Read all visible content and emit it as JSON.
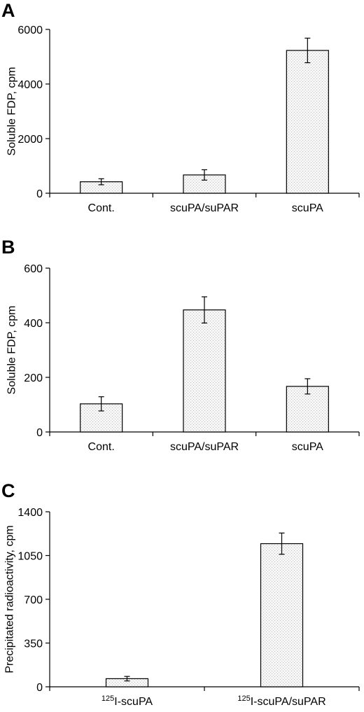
{
  "chart_data": [
    {
      "panel": "A",
      "type": "bar",
      "categories": [
        "Cont.",
        "scuPA/suPAR",
        "scuPA"
      ],
      "values": [
        420,
        670,
        5230
      ],
      "errors": [
        110,
        190,
        450
      ],
      "ylabel": "Soluble FDP, cpm",
      "ylim": [
        0,
        6000
      ],
      "yticks": [
        0,
        2000,
        4000,
        6000
      ],
      "grid": false,
      "legend": "none"
    },
    {
      "panel": "B",
      "type": "bar",
      "categories": [
        "Cont.",
        "scuPA/suPAR",
        "scuPA"
      ],
      "values": [
        103,
        447,
        167
      ],
      "errors": [
        26,
        48,
        28
      ],
      "ylabel": "Soluble FDP, cpm",
      "ylim": [
        0,
        600
      ],
      "yticks": [
        0,
        200,
        400,
        600
      ],
      "grid": false,
      "legend": "none"
    },
    {
      "panel": "C",
      "type": "bar",
      "categories": [
        {
          "sup": "125",
          "text": "I-scuPA"
        },
        {
          "sup": "125",
          "text": "I-scuPA/suPAR"
        }
      ],
      "values": [
        65,
        1145
      ],
      "errors": [
        18,
        85
      ],
      "ylabel": "Precipitated radioactivity, cpm",
      "ylim": [
        0,
        1400
      ],
      "yticks": [
        0,
        350,
        700,
        1050,
        1400
      ],
      "grid": false,
      "legend": "none"
    }
  ]
}
